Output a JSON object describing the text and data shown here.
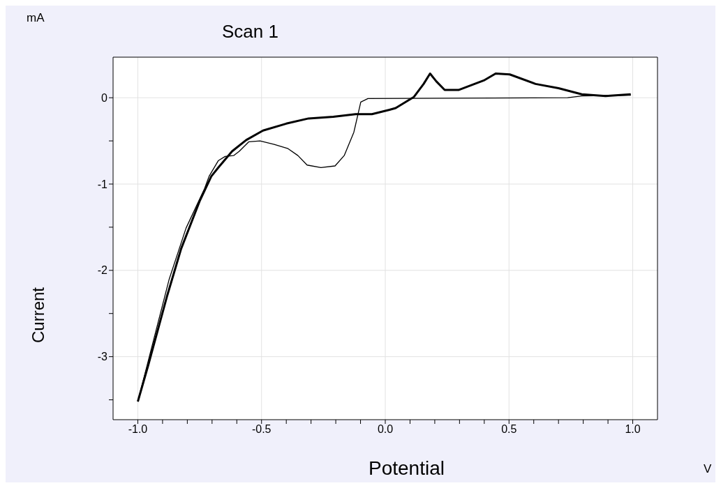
{
  "chart_data": {
    "type": "line",
    "title": "Scan 1",
    "xlabel": "Potential",
    "ylabel": "Current",
    "annotations": [
      "mA",
      "V"
    ],
    "xlim": [
      -1.1,
      1.1
    ],
    "ylim": [
      -3.73,
      0.47
    ],
    "xticks": [
      {
        "value": -1.0,
        "label": "-1.0"
      },
      {
        "value": -0.9,
        "label": null
      },
      {
        "value": -0.8,
        "label": null
      },
      {
        "value": -0.7,
        "label": null
      },
      {
        "value": -0.6,
        "label": null
      },
      {
        "value": -0.5,
        "label": "-0.5"
      },
      {
        "value": -0.4,
        "label": null
      },
      {
        "value": -0.3,
        "label": null
      },
      {
        "value": -0.2,
        "label": null
      },
      {
        "value": -0.1,
        "label": null
      },
      {
        "value": 0.0,
        "label": "0.0"
      },
      {
        "value": 0.1,
        "label": null
      },
      {
        "value": 0.2,
        "label": null
      },
      {
        "value": 0.3,
        "label": null
      },
      {
        "value": 0.4,
        "label": null
      },
      {
        "value": 0.5,
        "label": "0.5"
      },
      {
        "value": 0.6,
        "label": null
      },
      {
        "value": 0.7,
        "label": null
      },
      {
        "value": 0.8,
        "label": null
      },
      {
        "value": 0.9,
        "label": null
      },
      {
        "value": 1.0,
        "label": "1.0"
      }
    ],
    "yticks": [
      {
        "value": -3.5,
        "label": null
      },
      -3,
      {
        "value": -2.5,
        "label": null
      },
      -2,
      {
        "value": -1.5,
        "label": null
      },
      -1,
      {
        "value": -0.5,
        "label": null
      },
      0
    ],
    "grid": true,
    "marker": "none",
    "line_style": "solid",
    "series": [
      {
        "color": "#000000",
        "x": [
          -1.0,
          -0.958,
          -0.881,
          -0.825,
          -0.749,
          -0.703,
          -0.675,
          -0.619,
          -0.562,
          -0.494,
          -0.4,
          -0.31,
          -0.21,
          -0.12,
          -0.054,
          0.017,
          0.042,
          0.116,
          0.155,
          0.181,
          0.206,
          0.24,
          0.296,
          0.398,
          0.446,
          0.503,
          0.607,
          0.7,
          0.794,
          0.89,
          0.992
        ],
        "values": [
          -3.52,
          -3.1,
          -2.29,
          -1.75,
          -1.19,
          -0.91,
          -0.81,
          -0.62,
          -0.49,
          -0.38,
          -0.3,
          -0.24,
          -0.22,
          -0.19,
          -0.19,
          -0.14,
          -0.12,
          0.01,
          0.16,
          0.28,
          0.19,
          0.09,
          0.09,
          0.2,
          0.28,
          0.27,
          0.16,
          0.11,
          0.04,
          0.02,
          0.04
        ]
      },
      {
        "color": "#000000",
        "x": [
          -1.0,
          -0.958,
          -0.873,
          -0.805,
          -0.73,
          -0.712,
          -0.675,
          -0.647,
          -0.613,
          -0.59,
          -0.551,
          -0.506,
          -0.449,
          -0.393,
          -0.353,
          -0.316,
          -0.26,
          -0.203,
          -0.166,
          -0.127,
          -0.099,
          -0.07,
          0.737,
          0.794,
          0.992
        ],
        "values": [
          -3.52,
          -3.05,
          -2.1,
          -1.51,
          -1.05,
          -0.91,
          -0.73,
          -0.68,
          -0.67,
          -0.62,
          -0.51,
          -0.5,
          -0.54,
          -0.59,
          -0.67,
          -0.78,
          -0.81,
          -0.79,
          -0.67,
          -0.4,
          -0.05,
          -0.01,
          0.0,
          0.02,
          0.03
        ]
      }
    ]
  }
}
